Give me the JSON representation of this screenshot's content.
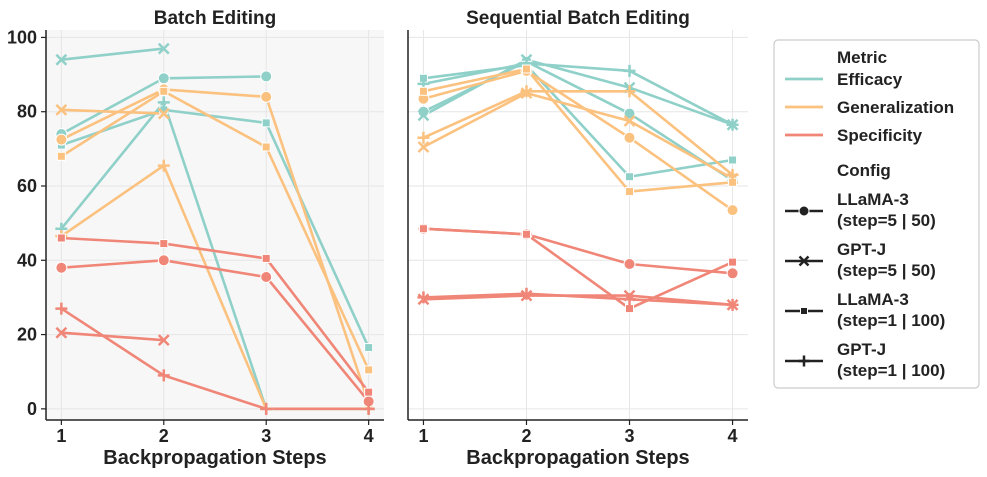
{
  "colors": {
    "efficacy": "#8fd0c9",
    "generalization": "#fbc17f",
    "specificity": "#f08677",
    "axis": "#222222",
    "grid": "#e6e6e6",
    "panel_bg_left": "#f7f7f7",
    "legend_border": "#cccccc"
  },
  "chart_data": [
    {
      "type": "line",
      "title": "Batch Editing",
      "xlabel": "Backpropagation Steps",
      "ylabel": "",
      "x": [
        1,
        2,
        3,
        4
      ],
      "x_tick_labels": [
        "1",
        "2",
        "3",
        "4"
      ],
      "ylim": [
        -3,
        102
      ],
      "y_ticks": [
        0,
        20,
        40,
        60,
        80,
        100
      ],
      "y_tick_labels": [
        "0",
        "20",
        "40",
        "60",
        "80",
        "100"
      ],
      "grid": true,
      "series": [
        {
          "metric": "Efficacy",
          "config": "LLaMA-3 (step=5 | 50)",
          "marker": "circle",
          "values": [
            74,
            89,
            89.5,
            null
          ]
        },
        {
          "metric": "Efficacy",
          "config": "GPT-J (step=5 | 50)",
          "marker": "x",
          "values": [
            94,
            97,
            null,
            null
          ]
        },
        {
          "metric": "Efficacy",
          "config": "LLaMA-3 (step=1 | 100)",
          "marker": "square",
          "values": [
            71,
            80.5,
            77,
            16.5
          ]
        },
        {
          "metric": "Efficacy",
          "config": "GPT-J (step=1 | 100)",
          "marker": "plus",
          "values": [
            48.5,
            82.5,
            0,
            0
          ]
        },
        {
          "metric": "Generalization",
          "config": "LLaMA-3 (step=5 | 50)",
          "marker": "circle",
          "values": [
            72.5,
            86,
            84,
            1.5
          ]
        },
        {
          "metric": "Generalization",
          "config": "GPT-J (step=5 | 50)",
          "marker": "x",
          "values": [
            80.5,
            79.5,
            null,
            null
          ]
        },
        {
          "metric": "Generalization",
          "config": "LLaMA-3 (step=1 | 100)",
          "marker": "square",
          "values": [
            68,
            85.5,
            70.5,
            10.5
          ]
        },
        {
          "metric": "Generalization",
          "config": "GPT-J (step=1 | 100)",
          "marker": "plus",
          "values": [
            46.5,
            65.5,
            0,
            0
          ]
        },
        {
          "metric": "Specificity",
          "config": "LLaMA-3 (step=5 | 50)",
          "marker": "circle",
          "values": [
            38,
            40,
            35.5,
            2
          ]
        },
        {
          "metric": "Specificity",
          "config": "GPT-J (step=5 | 50)",
          "marker": "x",
          "values": [
            20.5,
            18.5,
            null,
            null
          ]
        },
        {
          "metric": "Specificity",
          "config": "LLaMA-3 (step=1 | 100)",
          "marker": "square",
          "values": [
            46,
            44.5,
            40.5,
            4.5
          ]
        },
        {
          "metric": "Specificity",
          "config": "GPT-J (step=1 | 100)",
          "marker": "plus",
          "values": [
            27,
            9,
            0,
            0
          ]
        }
      ]
    },
    {
      "type": "line",
      "title": "Sequential Batch Editing",
      "xlabel": "Backpropagation  Steps",
      "ylabel": "",
      "x": [
        1,
        2,
        3,
        4
      ],
      "x_tick_labels": [
        "1",
        "2",
        "3",
        "4"
      ],
      "ylim": [
        -3,
        102
      ],
      "grid": true,
      "series": [
        {
          "metric": "Efficacy",
          "config": "LLaMA-3 (step=5 | 50)",
          "marker": "circle",
          "values": [
            80,
            93.5,
            79.5,
            61.5
          ]
        },
        {
          "metric": "Efficacy",
          "config": "GPT-J (step=5 | 50)",
          "marker": "x",
          "values": [
            79,
            94,
            86.5,
            76.5
          ]
        },
        {
          "metric": "Efficacy",
          "config": "LLaMA-3 (step=1 | 100)",
          "marker": "square",
          "values": [
            89,
            92.5,
            62.5,
            67
          ]
        },
        {
          "metric": "Efficacy",
          "config": "GPT-J (step=1 | 100)",
          "marker": "plus",
          "values": [
            87.5,
            93,
            91,
            76.5
          ]
        },
        {
          "metric": "Generalization",
          "config": "LLaMA-3 (step=5 | 50)",
          "marker": "circle",
          "values": [
            83.5,
            91,
            73,
            53.5
          ]
        },
        {
          "metric": "Generalization",
          "config": "GPT-J (step=5 | 50)",
          "marker": "x",
          "values": [
            70.5,
            85,
            77.5,
            62
          ]
        },
        {
          "metric": "Generalization",
          "config": "LLaMA-3 (step=1 | 100)",
          "marker": "square",
          "values": [
            85.5,
            91.5,
            58.5,
            61
          ]
        },
        {
          "metric": "Generalization",
          "config": "GPT-J (step=1 | 100)",
          "marker": "plus",
          "values": [
            73,
            85.5,
            85.5,
            63
          ]
        },
        {
          "metric": "Specificity",
          "config": "LLaMA-3 (step=5 | 50)",
          "marker": "circle",
          "values": [
            48.5,
            47,
            39,
            36.5
          ]
        },
        {
          "metric": "Specificity",
          "config": "GPT-J (step=5 | 50)",
          "marker": "x",
          "values": [
            29.5,
            30.5,
            30.5,
            28
          ]
        },
        {
          "metric": "Specificity",
          "config": "LLaMA-3 (step=1 | 100)",
          "marker": "square",
          "values": [
            48.5,
            47,
            27,
            39.5
          ]
        },
        {
          "metric": "Specificity",
          "config": "GPT-J (step=1 | 100)",
          "marker": "plus",
          "values": [
            30,
            31,
            29.5,
            28
          ]
        }
      ]
    }
  ],
  "legend": {
    "placement": "right",
    "metric_title": "Metric",
    "metrics": [
      "Efficacy",
      "Generalization",
      "Specificity"
    ],
    "config_title": "Config",
    "configs": [
      {
        "line1": "LLaMA-3",
        "line2": "(step=5 | 50)",
        "marker": "circle"
      },
      {
        "line1": "GPT-J",
        "line2": "(step=5 | 50)",
        "marker": "x"
      },
      {
        "line1": "LLaMA-3",
        "line2": "(step=1 | 100)",
        "marker": "square"
      },
      {
        "line1": "GPT-J",
        "line2": "(step=1 | 100)",
        "marker": "plus"
      }
    ]
  }
}
